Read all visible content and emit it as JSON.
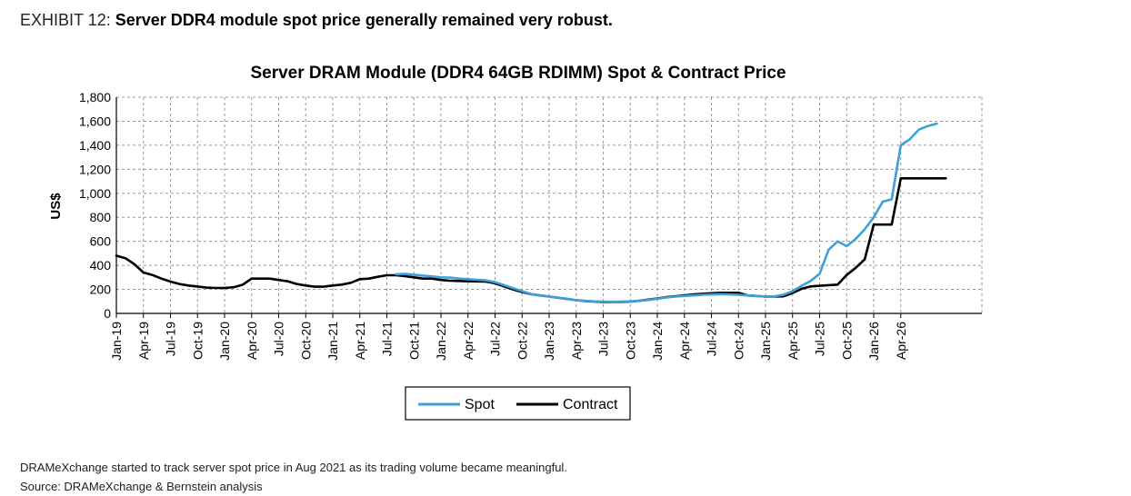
{
  "exhibit": {
    "label": "EXHIBIT 12:",
    "headline": "Server DDR4 module spot price generally remained very robust."
  },
  "footnote": "DRAMeXchange started to track server spot price in Aug 2021 as its trading volume became meaningful.",
  "source": "Source: DRAMeXchange & Bernstein analysis",
  "chart_data": {
    "type": "line",
    "title": "Server DRAM Module (DDR4 64GB RDIMM) Spot & Contract Price",
    "xlabel": "",
    "ylabel": "US$",
    "ylim": [
      0,
      1800
    ],
    "yticks": [
      0,
      200,
      400,
      600,
      800,
      1000,
      1200,
      1400,
      1600,
      1800
    ],
    "ytick_labels": [
      "0",
      "200",
      "400",
      "600",
      "800",
      "1,000",
      "1,200",
      "1,400",
      "1,600",
      "1,800"
    ],
    "xlim": [
      "2019-01",
      "2026-12"
    ],
    "xtick_labels": [
      "Jan-19",
      "Apr-19",
      "Jul-19",
      "Oct-19",
      "Jan-20",
      "Apr-20",
      "Jul-20",
      "Oct-20",
      "Jan-21",
      "Apr-21",
      "Jul-21",
      "Oct-21",
      "Jan-22",
      "Apr-22",
      "Jul-22",
      "Oct-22",
      "Jan-23",
      "Apr-23",
      "Jul-23",
      "Oct-23",
      "Jan-24",
      "Apr-24",
      "Jul-24",
      "Oct-24",
      "Jan-25",
      "Apr-25",
      "Jul-25",
      "Oct-25",
      "Jan-26",
      "Apr-26"
    ],
    "grid": true,
    "legend_position": "bottom",
    "series": [
      {
        "name": "Spot",
        "color": "#3ea0d8",
        "points": [
          [
            "2021-08",
            325
          ],
          [
            "2021-09",
            330
          ],
          [
            "2021-10",
            322
          ],
          [
            "2021-11",
            315
          ],
          [
            "2021-12",
            308
          ],
          [
            "2022-01",
            300
          ],
          [
            "2022-02",
            298
          ],
          [
            "2022-03",
            290
          ],
          [
            "2022-04",
            285
          ],
          [
            "2022-05",
            280
          ],
          [
            "2022-06",
            275
          ],
          [
            "2022-07",
            260
          ],
          [
            "2022-08",
            235
          ],
          [
            "2022-09",
            210
          ],
          [
            "2022-10",
            185
          ],
          [
            "2022-11",
            160
          ],
          [
            "2022-12",
            150
          ],
          [
            "2023-01",
            140
          ],
          [
            "2023-02",
            130
          ],
          [
            "2023-03",
            120
          ],
          [
            "2023-04",
            110
          ],
          [
            "2023-05",
            104
          ],
          [
            "2023-06",
            100
          ],
          [
            "2023-07",
            98
          ],
          [
            "2023-08",
            97
          ],
          [
            "2023-09",
            98
          ],
          [
            "2023-10",
            100
          ],
          [
            "2023-11",
            105
          ],
          [
            "2023-12",
            112
          ],
          [
            "2024-01",
            122
          ],
          [
            "2024-02",
            132
          ],
          [
            "2024-03",
            140
          ],
          [
            "2024-04",
            145
          ],
          [
            "2024-05",
            150
          ],
          [
            "2024-06",
            155
          ],
          [
            "2024-07",
            158
          ],
          [
            "2024-08",
            160
          ],
          [
            "2024-09",
            158
          ],
          [
            "2024-10",
            155
          ],
          [
            "2024-11",
            150
          ],
          [
            "2024-12",
            145
          ],
          [
            "2025-01",
            140
          ],
          [
            "2025-02",
            142
          ],
          [
            "2025-03",
            155
          ],
          [
            "2025-04",
            185
          ],
          [
            "2025-05",
            230
          ],
          [
            "2025-06",
            270
          ],
          [
            "2025-07",
            330
          ],
          [
            "2025-08",
            530
          ],
          [
            "2025-09",
            600
          ],
          [
            "2025-10",
            560
          ],
          [
            "2025-11",
            620
          ],
          [
            "2025-12",
            700
          ],
          [
            "2026-01",
            800
          ],
          [
            "2026-02",
            930
          ],
          [
            "2026-03",
            950
          ],
          [
            "2026-04",
            1400
          ],
          [
            "2026-05",
            1450
          ],
          [
            "2026-06",
            1530
          ],
          [
            "2026-07",
            1560
          ],
          [
            "2026-08",
            1580
          ]
        ]
      },
      {
        "name": "Contract",
        "color": "#000000",
        "points": [
          [
            "2019-01",
            480
          ],
          [
            "2019-02",
            460
          ],
          [
            "2019-03",
            410
          ],
          [
            "2019-04",
            340
          ],
          [
            "2019-05",
            320
          ],
          [
            "2019-06",
            290
          ],
          [
            "2019-07",
            265
          ],
          [
            "2019-08",
            245
          ],
          [
            "2019-09",
            232
          ],
          [
            "2019-10",
            224
          ],
          [
            "2019-11",
            215
          ],
          [
            "2019-12",
            212
          ],
          [
            "2020-01",
            212
          ],
          [
            "2020-02",
            218
          ],
          [
            "2020-03",
            238
          ],
          [
            "2020-04",
            290
          ],
          [
            "2020-05",
            290
          ],
          [
            "2020-06",
            290
          ],
          [
            "2020-07",
            278
          ],
          [
            "2020-08",
            268
          ],
          [
            "2020-09",
            245
          ],
          [
            "2020-10",
            232
          ],
          [
            "2020-11",
            222
          ],
          [
            "2020-12",
            222
          ],
          [
            "2021-01",
            232
          ],
          [
            "2021-02",
            240
          ],
          [
            "2021-03",
            255
          ],
          [
            "2021-04",
            285
          ],
          [
            "2021-05",
            290
          ],
          [
            "2021-06",
            305
          ],
          [
            "2021-07",
            318
          ],
          [
            "2021-08",
            318
          ],
          [
            "2021-09",
            310
          ],
          [
            "2021-10",
            300
          ],
          [
            "2021-11",
            290
          ],
          [
            "2021-12",
            290
          ],
          [
            "2022-01",
            278
          ],
          [
            "2022-02",
            272
          ],
          [
            "2022-03",
            270
          ],
          [
            "2022-04",
            268
          ],
          [
            "2022-05",
            266
          ],
          [
            "2022-06",
            265
          ],
          [
            "2022-07",
            250
          ],
          [
            "2022-08",
            225
          ],
          [
            "2022-09",
            200
          ],
          [
            "2022-10",
            178
          ],
          [
            "2022-11",
            160
          ],
          [
            "2022-12",
            150
          ],
          [
            "2023-01",
            140
          ],
          [
            "2023-02",
            130
          ],
          [
            "2023-03",
            120
          ],
          [
            "2023-04",
            110
          ],
          [
            "2023-05",
            103
          ],
          [
            "2023-06",
            98
          ],
          [
            "2023-07",
            95
          ],
          [
            "2023-08",
            95
          ],
          [
            "2023-09",
            96
          ],
          [
            "2023-10",
            98
          ],
          [
            "2023-11",
            105
          ],
          [
            "2023-12",
            115
          ],
          [
            "2024-01",
            125
          ],
          [
            "2024-02",
            135
          ],
          [
            "2024-03",
            142
          ],
          [
            "2024-04",
            150
          ],
          [
            "2024-05",
            158
          ],
          [
            "2024-06",
            163
          ],
          [
            "2024-07",
            168
          ],
          [
            "2024-08",
            172
          ],
          [
            "2024-09",
            172
          ],
          [
            "2024-10",
            172
          ],
          [
            "2024-11",
            150
          ],
          [
            "2024-12",
            145
          ],
          [
            "2025-01",
            140
          ],
          [
            "2025-02",
            140
          ],
          [
            "2025-03",
            142
          ],
          [
            "2025-04",
            170
          ],
          [
            "2025-05",
            205
          ],
          [
            "2025-06",
            225
          ],
          [
            "2025-07",
            230
          ],
          [
            "2025-08",
            235
          ],
          [
            "2025-09",
            240
          ],
          [
            "2025-10",
            320
          ],
          [
            "2025-11",
            380
          ],
          [
            "2025-12",
            450
          ],
          [
            "2026-01",
            740
          ],
          [
            "2026-02",
            740
          ],
          [
            "2026-03",
            740
          ],
          [
            "2026-04",
            1125
          ],
          [
            "2026-05",
            1125
          ],
          [
            "2026-06",
            1125
          ],
          [
            "2026-07",
            1125
          ],
          [
            "2026-08",
            1125
          ],
          [
            "2026-09",
            1125
          ]
        ]
      }
    ]
  }
}
